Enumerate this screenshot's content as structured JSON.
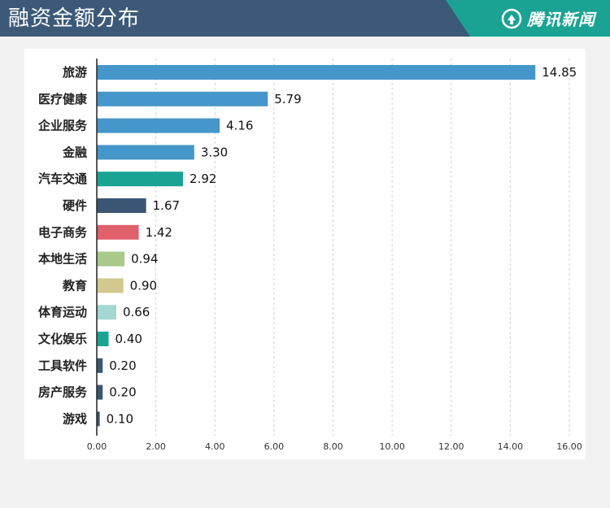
{
  "header": {
    "title": "融资金额分布",
    "brand": "腾讯新闻",
    "colors": {
      "header_bg": "#3c5a78",
      "brand_bg": "#1aa393"
    }
  },
  "chart_data": {
    "type": "bar",
    "orientation": "horizontal",
    "title": "融资金额分布",
    "categories": [
      "旅游",
      "医疗健康",
      "企业服务",
      "金融",
      "汽车交通",
      "硬件",
      "电子商务",
      "本地生活",
      "教育",
      "体育运动",
      "文化娱乐",
      "工具软件",
      "房产服务",
      "游戏"
    ],
    "values": [
      14.85,
      5.79,
      4.16,
      3.3,
      2.92,
      1.67,
      1.42,
      0.94,
      0.9,
      0.66,
      0.4,
      0.2,
      0.2,
      0.1
    ],
    "value_labels": [
      "14.85",
      "5.79",
      "4.16",
      "3.30",
      "2.92",
      "1.67",
      "1.42",
      "0.94",
      "0.90",
      "0.66",
      "0.40",
      "0.20",
      "0.20",
      "0.10"
    ],
    "colors": [
      "#4596ca",
      "#4596ca",
      "#4596ca",
      "#4596ca",
      "#1aa393",
      "#3b5675",
      "#e0606b",
      "#a9c98a",
      "#d3c98e",
      "#a5d7d2",
      "#1aa393",
      "#3b5675",
      "#3b5675",
      "#3b5675"
    ],
    "xlim": [
      0,
      16
    ],
    "x_ticks": [
      0,
      2,
      4,
      6,
      8,
      10,
      12,
      14,
      16
    ],
    "x_tick_labels": [
      "0.00",
      "2.00",
      "4.00",
      "6.00",
      "8.00",
      "10.00",
      "12.00",
      "14.00",
      "16.00"
    ],
    "grid": "vertical dashed",
    "legend": "none",
    "xlabel": "",
    "ylabel": ""
  }
}
